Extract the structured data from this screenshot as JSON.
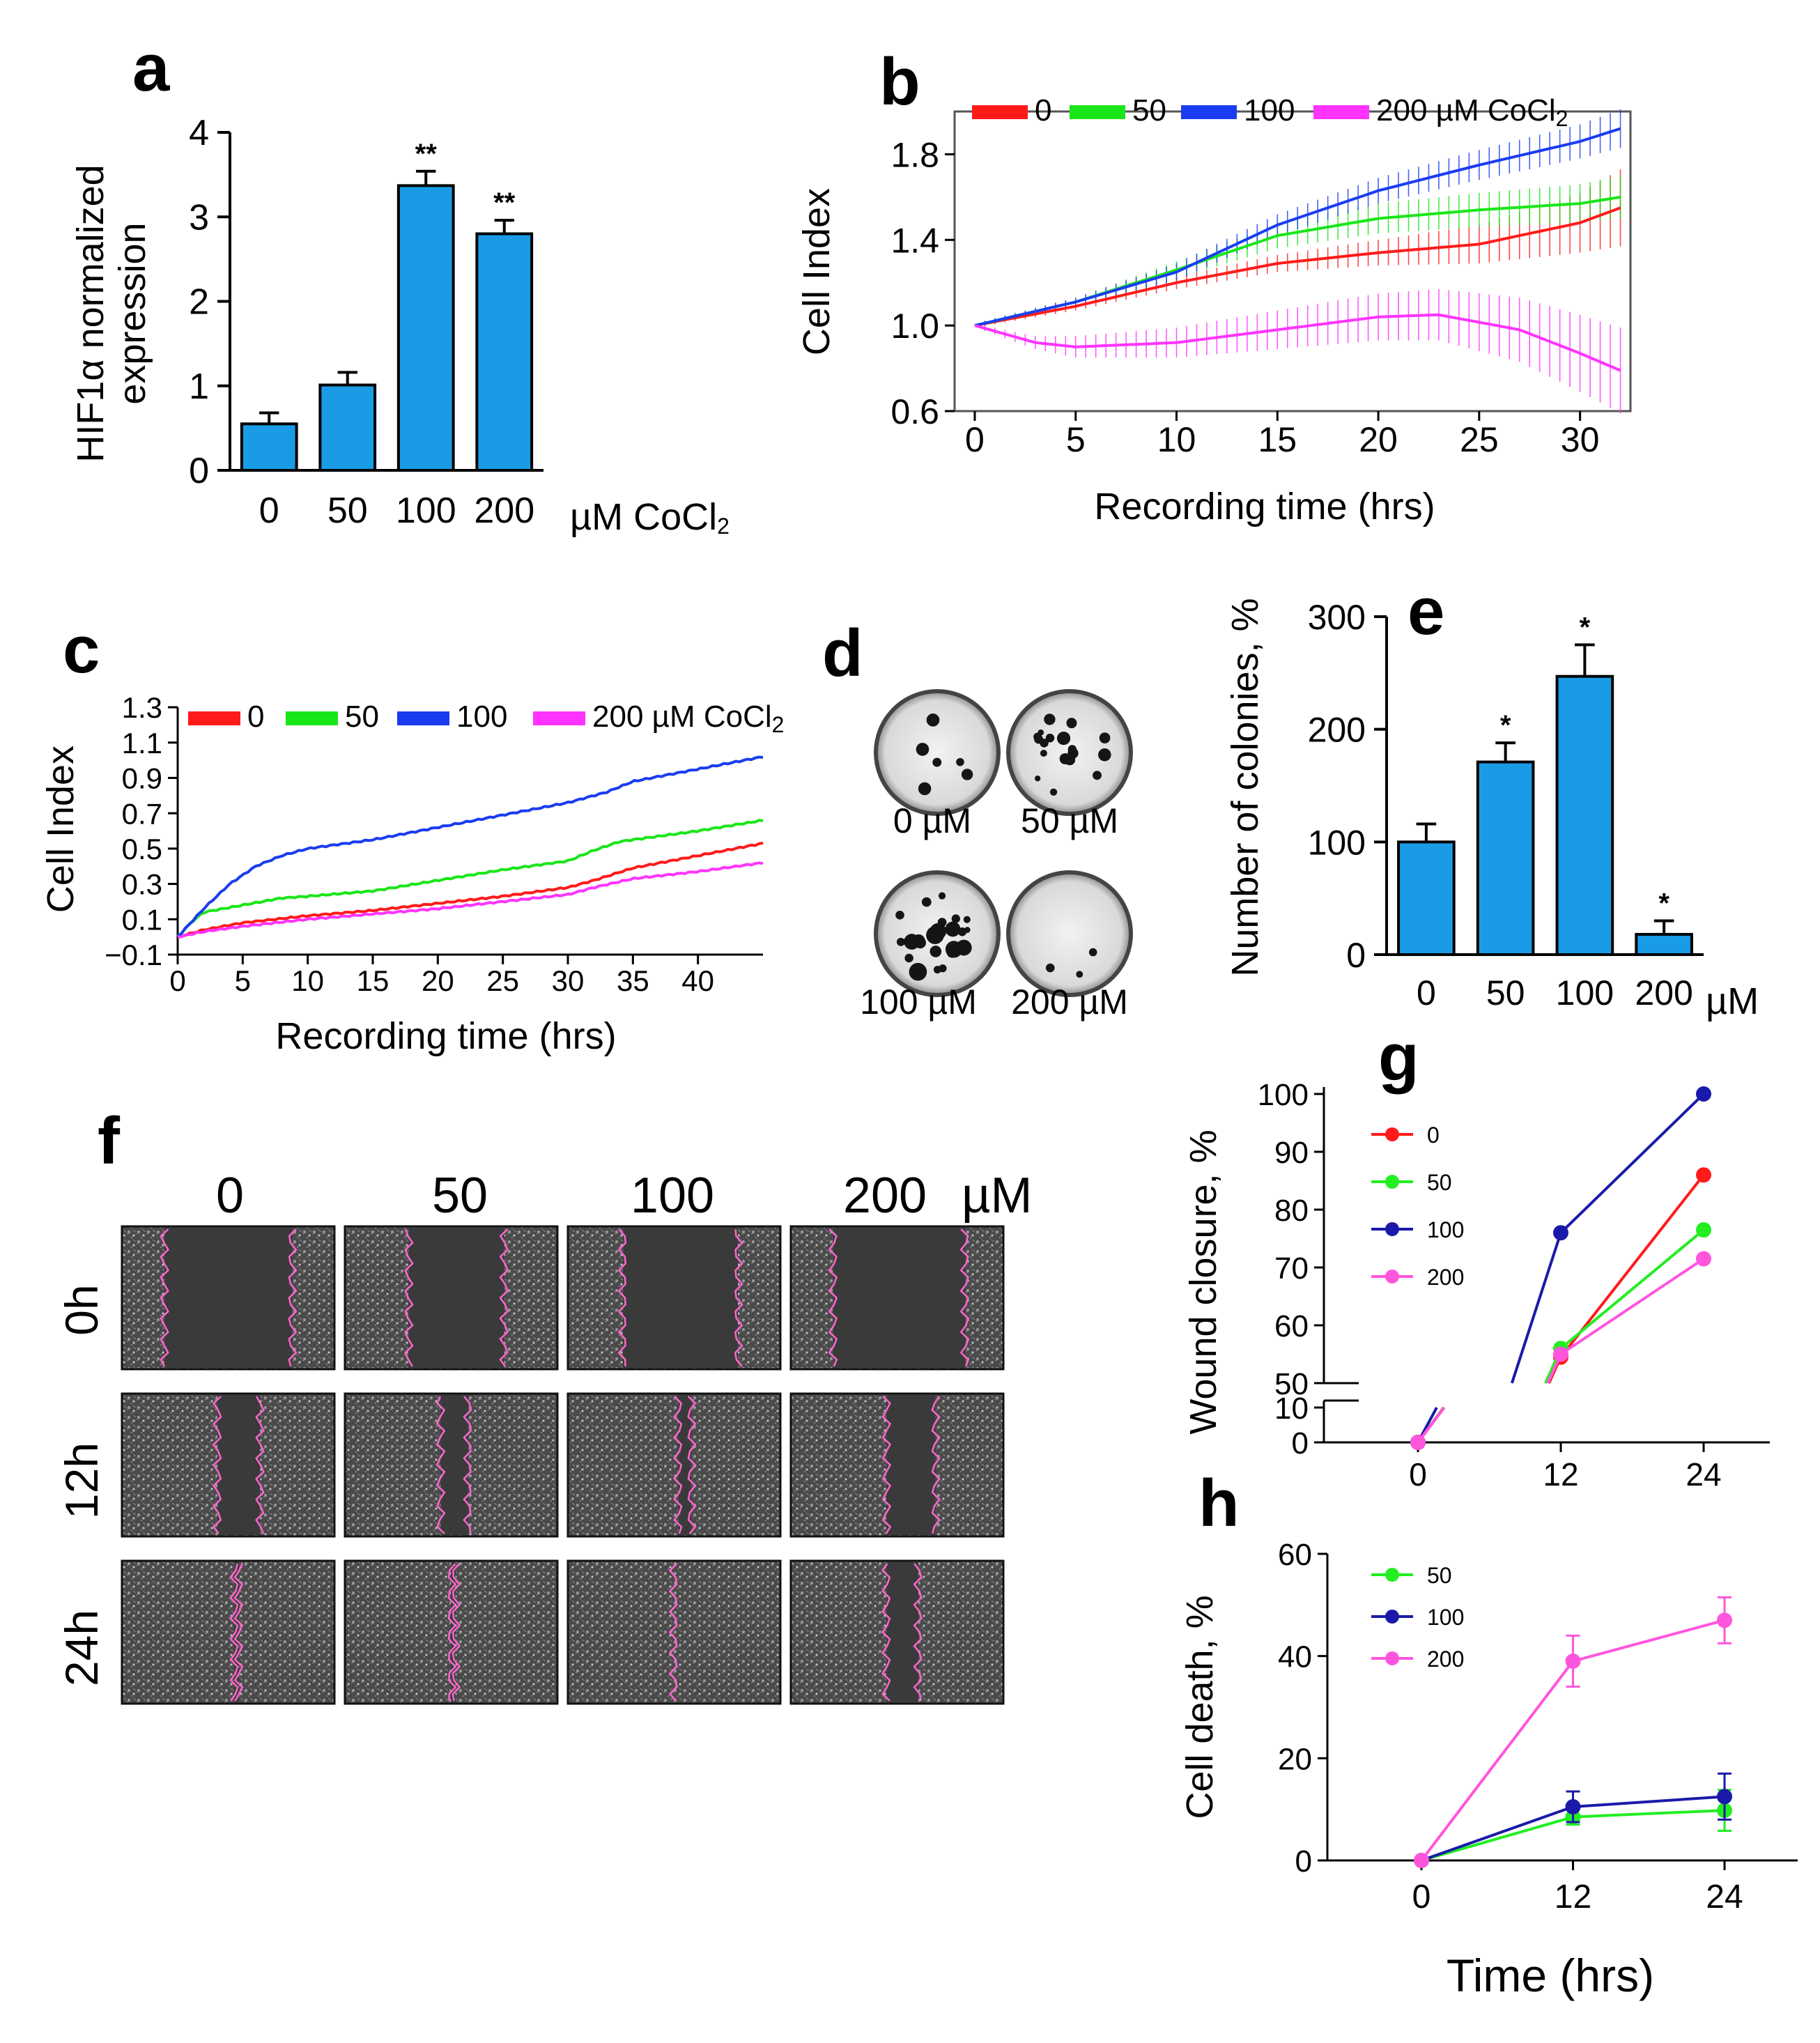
{
  "colors": {
    "bar": "#1a9be6",
    "c0": "#ff1a1a",
    "c50": "#19e619",
    "c100": "#1a3cf0",
    "c200": "#ff33ff",
    "g0": "#ff1a1a",
    "g50": "#22ee22",
    "g100": "#1a1aaa",
    "g200": "#ff55dd"
  },
  "chart_data": [
    {
      "id": "a",
      "panel": "a",
      "type": "bar",
      "categories": [
        "0",
        "50",
        "100",
        "200"
      ],
      "unit_label": "µM CoCl",
      "unit_sub": "2",
      "values": [
        0.55,
        1.01,
        3.37,
        2.8
      ],
      "errors": [
        0.13,
        0.15,
        0.17,
        0.16
      ],
      "annotations": [
        "",
        "",
        "**",
        "**"
      ],
      "ylabel_line1": "HIF1α normalized",
      "ylabel_line2": "expression",
      "ylim": [
        0,
        4
      ],
      "yticks": [
        "0",
        "1",
        "2",
        "3",
        "4"
      ]
    },
    {
      "id": "b",
      "panel": "b",
      "type": "line",
      "xlabel": "Recording time (hrs)",
      "ylabel": "Cell Index",
      "xlim": [
        -1,
        32.5
      ],
      "ylim": [
        0.6,
        2.0
      ],
      "xticks": [
        "0",
        "5",
        "10",
        "15",
        "20",
        "25",
        "30"
      ],
      "yticks": [
        "0.6",
        "1.0",
        "1.4",
        "1.8"
      ],
      "legend": [
        "0",
        "50",
        "100",
        "200 µM CoCl"
      ],
      "legend_sub": "2",
      "series": [
        {
          "name": "0",
          "color_key": "c0",
          "x": [
            0,
            5,
            10,
            15,
            20,
            25,
            30,
            32
          ],
          "y": [
            1.0,
            1.09,
            1.2,
            1.29,
            1.34,
            1.38,
            1.48,
            1.55
          ],
          "err": [
            0.01,
            0.02,
            0.03,
            0.04,
            0.06,
            0.09,
            0.14,
            0.18
          ]
        },
        {
          "name": "50",
          "color_key": "c50",
          "x": [
            0,
            5,
            10,
            15,
            20,
            25,
            30,
            32
          ],
          "y": [
            1.0,
            1.11,
            1.26,
            1.42,
            1.5,
            1.54,
            1.57,
            1.6
          ],
          "err": [
            0.01,
            0.02,
            0.04,
            0.06,
            0.07,
            0.08,
            0.09,
            0.1
          ]
        },
        {
          "name": "100",
          "color_key": "c100",
          "x": [
            0,
            5,
            10,
            15,
            20,
            25,
            30,
            32
          ],
          "y": [
            1.0,
            1.11,
            1.25,
            1.47,
            1.63,
            1.75,
            1.86,
            1.92
          ],
          "err": [
            0.01,
            0.02,
            0.04,
            0.05,
            0.06,
            0.07,
            0.08,
            0.09
          ]
        },
        {
          "name": "200",
          "color_key": "c200",
          "x": [
            0,
            3,
            5,
            10,
            15,
            20,
            23,
            27,
            30,
            32
          ],
          "y": [
            1.0,
            0.92,
            0.9,
            0.92,
            0.98,
            1.04,
            1.05,
            0.98,
            0.87,
            0.79
          ],
          "err": [
            0.01,
            0.03,
            0.05,
            0.07,
            0.09,
            0.11,
            0.12,
            0.15,
            0.18,
            0.2
          ]
        }
      ]
    },
    {
      "id": "c",
      "panel": "c",
      "type": "line",
      "xlabel": "Recording time (hrs)",
      "ylabel": "Cell Index",
      "xlim": [
        0,
        45
      ],
      "ylim": [
        -0.1,
        1.3
      ],
      "xticks": [
        "0",
        "5",
        "10",
        "15",
        "20",
        "25",
        "30",
        "35",
        "40"
      ],
      "yticks": [
        "−0.1",
        "0.1",
        "0.3",
        "0.5",
        "0.7",
        "0.9",
        "1.1",
        "1.3"
      ],
      "legend": [
        "0",
        "50",
        "100",
        "200 µM CoCl"
      ],
      "legend_sub": "2",
      "series": [
        {
          "name": "0",
          "color_key": "c0",
          "x": [
            0,
            2,
            5,
            10,
            15,
            20,
            25,
            30,
            32,
            35,
            40,
            45
          ],
          "y": [
            0,
            0.04,
            0.08,
            0.12,
            0.15,
            0.19,
            0.23,
            0.28,
            0.32,
            0.39,
            0.46,
            0.53
          ]
        },
        {
          "name": "50",
          "color_key": "c50",
          "x": [
            0,
            1,
            2,
            5,
            8,
            10,
            15,
            20,
            25,
            30,
            32,
            34,
            40,
            45
          ],
          "y": [
            0,
            0.08,
            0.14,
            0.18,
            0.22,
            0.23,
            0.26,
            0.32,
            0.38,
            0.43,
            0.49,
            0.54,
            0.6,
            0.66
          ]
        },
        {
          "name": "100",
          "color_key": "c100",
          "x": [
            0,
            2,
            4,
            6,
            8,
            10,
            15,
            20,
            25,
            30,
            33,
            35,
            40,
            45
          ],
          "y": [
            0,
            0.16,
            0.3,
            0.4,
            0.46,
            0.5,
            0.55,
            0.62,
            0.69,
            0.76,
            0.82,
            0.88,
            0.95,
            1.02
          ]
        },
        {
          "name": "200",
          "color_key": "c200",
          "x": [
            0,
            2,
            5,
            10,
            15,
            20,
            25,
            30,
            32,
            35,
            40,
            45
          ],
          "y": [
            0,
            0.03,
            0.06,
            0.1,
            0.13,
            0.16,
            0.2,
            0.24,
            0.28,
            0.33,
            0.37,
            0.42
          ]
        }
      ]
    },
    {
      "id": "e",
      "panel": "e",
      "type": "bar",
      "categories": [
        "0",
        "50",
        "100",
        "200"
      ],
      "unit_label": "µM",
      "values": [
        100,
        171,
        247,
        18
      ],
      "errors": [
        16,
        17,
        28,
        12
      ],
      "annotations": [
        "",
        "*",
        "*",
        "*"
      ],
      "ylabel": "Number of colonies, %",
      "ylim": [
        0,
        300
      ],
      "yticks": [
        "0",
        "100",
        "200",
        "300"
      ]
    },
    {
      "id": "g",
      "panel": "g",
      "type": "line",
      "ylabel": "Wound closure, %",
      "xticks": [
        "0",
        "12",
        "24"
      ],
      "yticks_upper": [
        "50",
        "60",
        "70",
        "80",
        "90",
        "100"
      ],
      "yticks_lower": [
        "0",
        "10"
      ],
      "legend": [
        "0",
        "50",
        "100",
        "200"
      ],
      "series": [
        {
          "name": "0",
          "color_key": "g0",
          "x": [
            0,
            12,
            24
          ],
          "y": [
            0,
            54.5,
            86
          ],
          "err": [
            0,
            1.2,
            0.8
          ]
        },
        {
          "name": "50",
          "color_key": "g50",
          "x": [
            0,
            12,
            24
          ],
          "y": [
            0,
            56,
            76.5
          ],
          "err": [
            0,
            1.0,
            1.2
          ]
        },
        {
          "name": "100",
          "color_key": "g100",
          "x": [
            0,
            12,
            24
          ],
          "y": [
            0,
            76,
            100
          ],
          "err": [
            0,
            1.0,
            0.6
          ]
        },
        {
          "name": "200",
          "color_key": "g200",
          "x": [
            0,
            12,
            24
          ],
          "y": [
            0,
            55,
            71.5
          ],
          "err": [
            0,
            1.2,
            0.9
          ]
        }
      ]
    },
    {
      "id": "h",
      "panel": "h",
      "type": "line",
      "xlabel": "Time (hrs)",
      "ylabel": "Cell death, %",
      "ylim": [
        0,
        60
      ],
      "xticks": [
        "0",
        "12",
        "24"
      ],
      "yticks": [
        "0",
        "20",
        "40",
        "60"
      ],
      "legend": [
        "50",
        "100",
        "200"
      ],
      "series": [
        {
          "name": "50",
          "color_key": "g50",
          "x": [
            0,
            12,
            24
          ],
          "y": [
            0,
            8.5,
            9.8
          ],
          "err": [
            0,
            1.5,
            4
          ]
        },
        {
          "name": "100",
          "color_key": "g100",
          "x": [
            0,
            12,
            24
          ],
          "y": [
            0,
            10.5,
            12.5
          ],
          "err": [
            0,
            3,
            4.5
          ]
        },
        {
          "name": "200",
          "color_key": "g200",
          "x": [
            0,
            12,
            24
          ],
          "y": [
            0,
            39,
            47
          ],
          "err": [
            0,
            5,
            4.5
          ]
        }
      ]
    }
  ],
  "panel_d": {
    "letter": "d",
    "labels": [
      "0 µM",
      "50 µM",
      "100 µM",
      "200 µM"
    ],
    "colony_counts": [
      6,
      18,
      24,
      3
    ]
  },
  "panel_f": {
    "letter": "f",
    "columns": [
      "0",
      "50",
      "100",
      "200"
    ],
    "unit": "µM",
    "rows": [
      "0h",
      "12h",
      "24h"
    ]
  }
}
